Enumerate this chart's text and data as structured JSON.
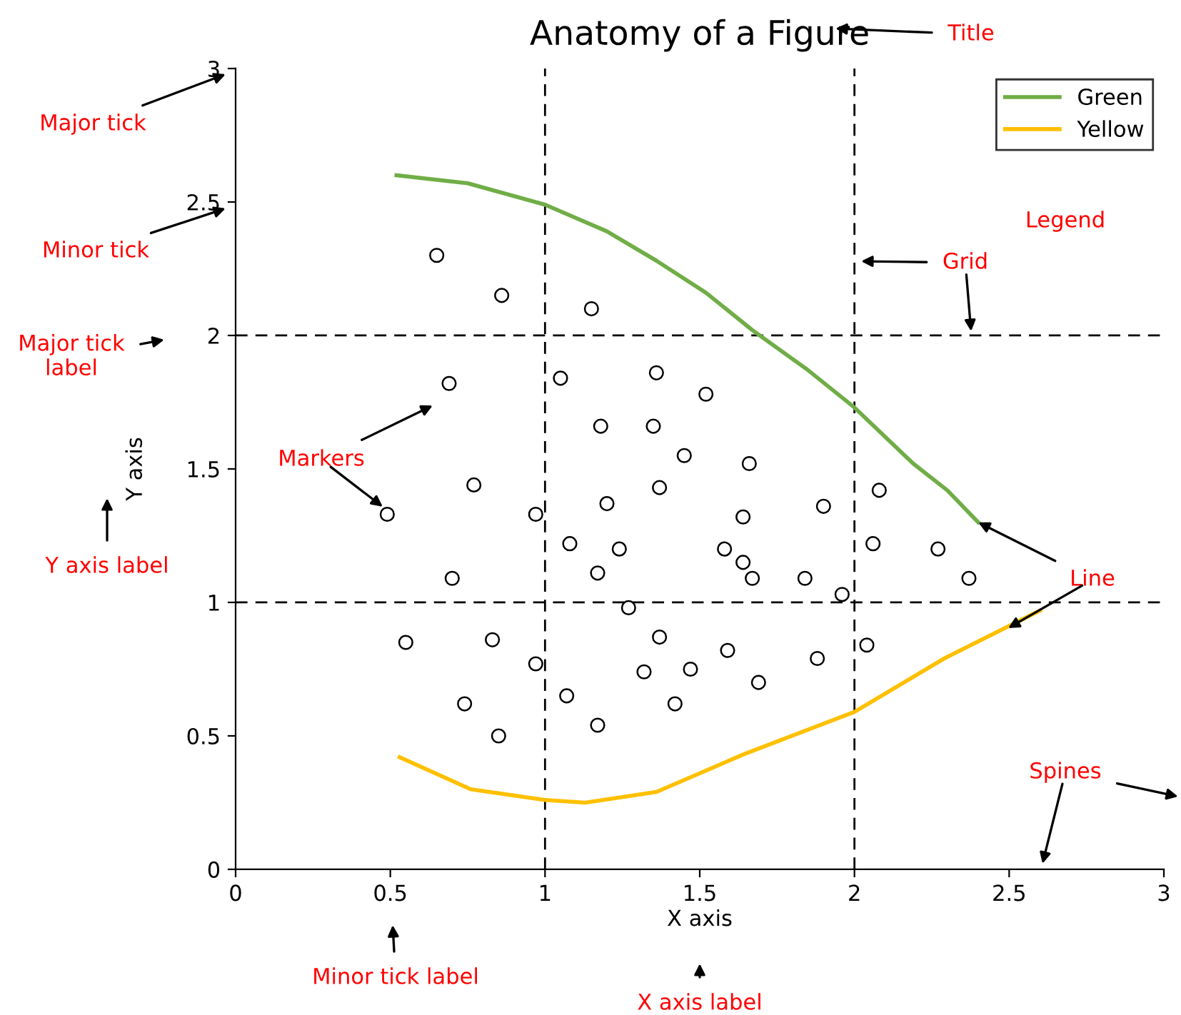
{
  "chart_data": {
    "type": "scatter",
    "title": "Anatomy of a Figure",
    "xlabel": "X axis",
    "ylabel": "Y axis",
    "xlim": [
      0,
      3
    ],
    "ylim": [
      0,
      3
    ],
    "xticks": [
      0,
      0.5,
      1,
      1.5,
      2,
      2.5,
      3
    ],
    "yticks": [
      0,
      0.5,
      1,
      1.5,
      2,
      2.5,
      3
    ],
    "grid": true,
    "legend": "top right",
    "series": [
      {
        "marker": "circle",
        "color": "#000000",
        "x": [
          0.65,
          0.86,
          1.15,
          0.69,
          1.05,
          1.36,
          1.52,
          1.18,
          1.35,
          1.45,
          1.66,
          0.77,
          0.49,
          0.97,
          1.2,
          1.37,
          1.64,
          1.9,
          2.08,
          1.08,
          1.24,
          1.58,
          1.64,
          1.67,
          2.06,
          2.27,
          0.7,
          1.17,
          1.84,
          1.96,
          2.37,
          1.27,
          0.55,
          0.83,
          1.37,
          1.59,
          0.97,
          1.32,
          1.47,
          1.69,
          1.88,
          2.04,
          0.74,
          1.07,
          1.42,
          0.85,
          1.17
        ],
        "values": [
          2.3,
          2.15,
          2.1,
          1.82,
          1.84,
          1.86,
          1.78,
          1.66,
          1.66,
          1.55,
          1.52,
          1.44,
          1.33,
          1.33,
          1.37,
          1.43,
          1.32,
          1.36,
          1.42,
          1.22,
          1.2,
          1.2,
          1.15,
          1.09,
          1.22,
          1.2,
          1.09,
          1.11,
          1.09,
          1.03,
          1.09,
          0.98,
          0.85,
          0.86,
          0.87,
          0.82,
          0.77,
          0.74,
          0.75,
          0.7,
          0.79,
          0.84,
          0.62,
          0.65,
          0.62,
          0.5,
          0.54
        ]
      },
      {
        "type": "line",
        "name": "Green",
        "color": "#70ad47",
        "x": [
          0.52,
          0.75,
          1.0,
          1.2,
          1.36,
          1.52,
          1.67,
          1.85,
          2.0,
          2.19,
          2.3,
          2.4
        ],
        "values": [
          2.6,
          2.57,
          2.49,
          2.39,
          2.28,
          2.16,
          2.02,
          1.87,
          1.73,
          1.52,
          1.42,
          1.3
        ]
      },
      {
        "type": "line",
        "name": "Yellow",
        "color": "#ffc000",
        "x": [
          0.53,
          0.76,
          1.0,
          1.13,
          1.36,
          1.64,
          2.0,
          2.29,
          2.6
        ],
        "values": [
          0.42,
          0.3,
          0.26,
          0.25,
          0.29,
          0.43,
          0.59,
          0.79,
          0.97
        ]
      }
    ],
    "annotations": [
      "Title",
      "Major tick",
      "Minor tick",
      "Major tick\nlabel",
      "Markers",
      "Y axis label",
      "Grid",
      "Legend",
      {
        "text": "Line",
        "x": 2.4,
        "y": 1.3
      },
      "Spines",
      "Minor tick label",
      "X axis label"
    ]
  }
}
